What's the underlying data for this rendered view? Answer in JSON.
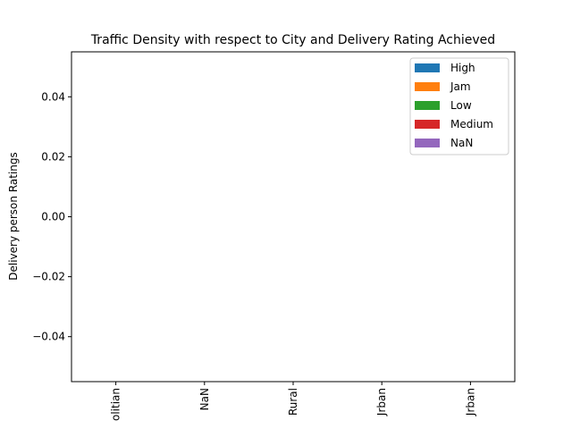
{
  "chart_data": {
    "type": "bar",
    "title": "Traffic Density with respect to City and Delivery Rating Achieved",
    "xlabel": "",
    "ylabel": "Delivery person Ratings",
    "categories": [
      "Metropolitian",
      "NaN",
      "Rural",
      "Semi-Urban",
      "Urban"
    ],
    "visible_category_labels": [
      "olitian",
      "NaN",
      "Rural",
      "Jrban",
      "Jrban"
    ],
    "series": [
      {
        "name": "High",
        "color": "#1f77b4",
        "values": [
          0,
          0,
          0,
          0,
          0
        ]
      },
      {
        "name": "Jam",
        "color": "#ff7f0e",
        "values": [
          0,
          0,
          0,
          0,
          0
        ]
      },
      {
        "name": "Low",
        "color": "#2ca02c",
        "values": [
          0,
          0,
          0,
          0,
          0
        ]
      },
      {
        "name": "Medium",
        "color": "#d62728",
        "values": [
          0,
          0,
          0,
          0,
          0
        ]
      },
      {
        "name": "NaN",
        "color": "#9467bd",
        "values": [
          0,
          0,
          0,
          0,
          0
        ]
      }
    ],
    "ylim": [
      -0.055,
      0.055
    ],
    "yticks": [
      -0.04,
      -0.02,
      0.0,
      0.02,
      0.04
    ],
    "ytick_labels": [
      "−0.04",
      "−0.02",
      "0.00",
      "0.02",
      "0.04"
    ],
    "legend_position": "top-right",
    "grid": false
  }
}
